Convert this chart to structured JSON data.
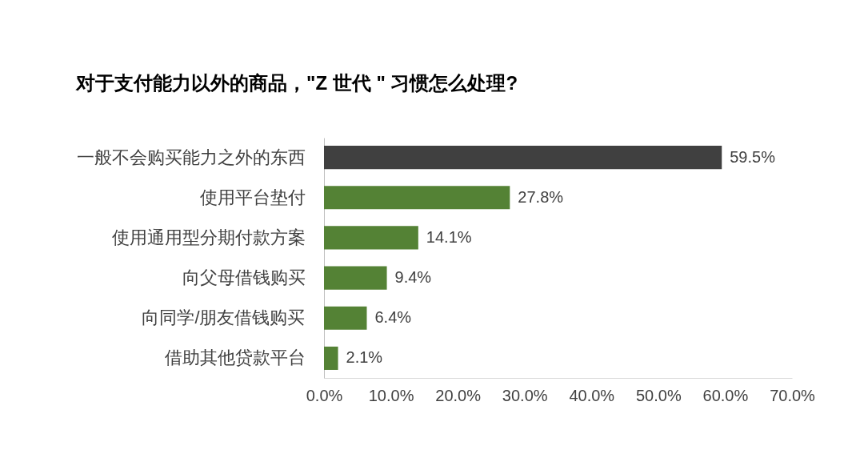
{
  "chart_data": {
    "type": "bar",
    "orientation": "horizontal",
    "title": "对于支付能力以外的商品，\"Z 世代 \" 习惯怎么处理?",
    "categories": [
      "一般不会购买能力之外的东西",
      "使用平台垫付",
      "使用通用型分期付款方案",
      "向父母借钱购买",
      "向同学/朋友借钱购买",
      "借助其他贷款平台"
    ],
    "values": [
      59.5,
      27.8,
      14.1,
      9.4,
      6.4,
      2.1
    ],
    "colors": [
      "#404040",
      "#548235",
      "#548235",
      "#548235",
      "#548235",
      "#548235"
    ],
    "value_labels": [
      "59.5%",
      "27.8%",
      "14.1%",
      "9.4%",
      "6.4%",
      "2.1%"
    ],
    "xlim": [
      0,
      70
    ],
    "xticks": [
      {
        "value": 0,
        "label": "0.0%"
      },
      {
        "value": 10,
        "label": "10.0%"
      },
      {
        "value": 20,
        "label": "20.0%"
      },
      {
        "value": 30,
        "label": "30.0%"
      },
      {
        "value": 40,
        "label": "40.0%"
      },
      {
        "value": 50,
        "label": "50.0%"
      },
      {
        "value": 60,
        "label": "60.0%"
      },
      {
        "value": 70,
        "label": "70.0%"
      }
    ]
  }
}
